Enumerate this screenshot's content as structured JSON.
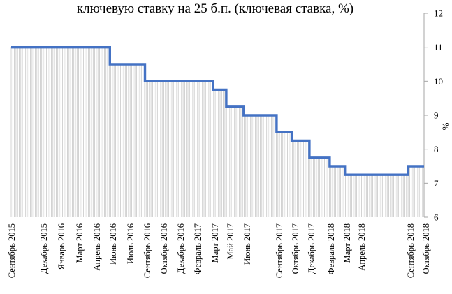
{
  "chart_data": {
    "type": "line",
    "title": "ключевую ставку на 25 б.п. (ключевая ставка, %)",
    "ylabel": "%",
    "xlabel": "",
    "ylim": [
      6,
      12
    ],
    "yticks": [
      "6",
      "7",
      "8",
      "9",
      "10",
      "11",
      "12"
    ],
    "x_tick_labels": [
      "Сентябрь 2015",
      "Декабрь 2015",
      "Январь 2016",
      "Март 2016",
      "Апрель 2016",
      "Июнь 2016",
      "Июль 2016",
      "Сентябрь 2016",
      "Октябрь 2016",
      "Декабрь 2016",
      "Февраль 2017",
      "Март 2017",
      "Май 2017",
      "Июнь 2017",
      "Сентябрь 2017",
      "Октябрь 2017",
      "Декабрь 2017",
      "Февраль 2018",
      "Март 2018",
      "Апрель 2018",
      "Сентябрь 2018",
      "Октябрь 2018"
    ],
    "series": [
      {
        "values": [
          {
            "x": "2015-09-15",
            "y": 11.0
          },
          {
            "x": "2016-06-14",
            "y": 10.5
          },
          {
            "x": "2016-09-19",
            "y": 10.0
          },
          {
            "x": "2017-03-27",
            "y": 9.75
          },
          {
            "x": "2017-05-02",
            "y": 9.25
          },
          {
            "x": "2017-06-19",
            "y": 9.0
          },
          {
            "x": "2017-09-18",
            "y": 8.5
          },
          {
            "x": "2017-10-30",
            "y": 8.25
          },
          {
            "x": "2017-12-18",
            "y": 7.75
          },
          {
            "x": "2018-02-12",
            "y": 7.5
          },
          {
            "x": "2018-03-26",
            "y": 7.25
          },
          {
            "x": "2018-09-17",
            "y": 7.5
          },
          {
            "x": "2018-10-31",
            "y": 7.5
          }
        ]
      }
    ],
    "grid": false,
    "legend": "none",
    "colors": {
      "line": "#4472C4",
      "fill_hatch": "#c8c8c8"
    }
  }
}
